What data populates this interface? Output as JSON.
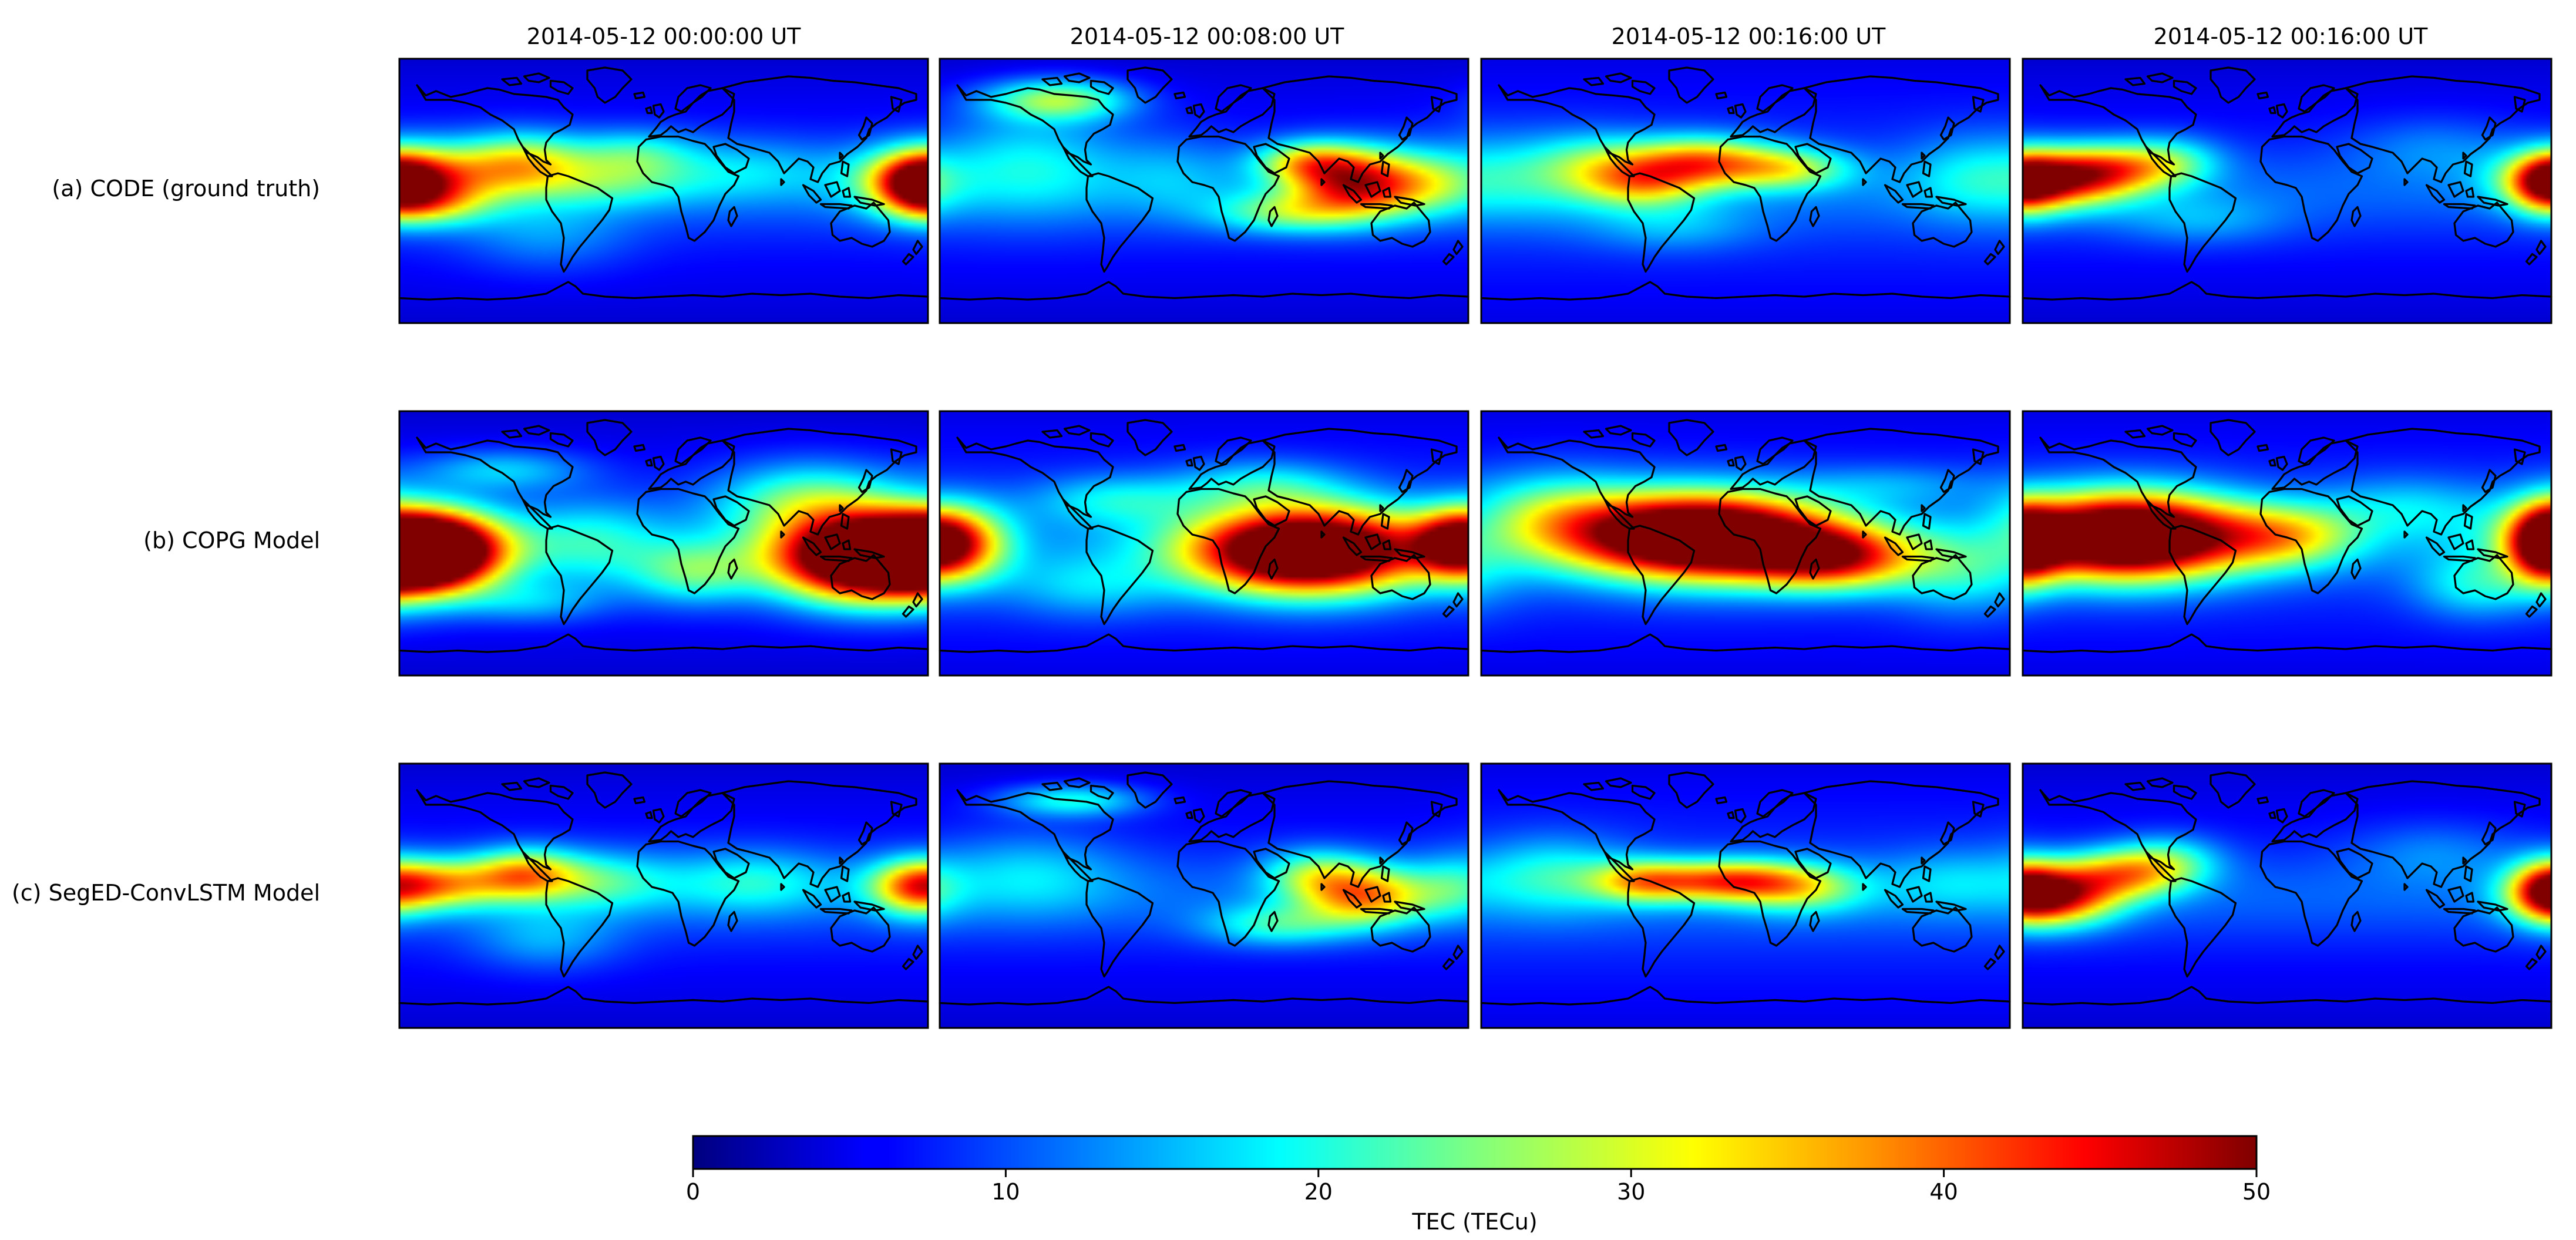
{
  "chart_data": {
    "type": "heatmap",
    "quantity": "TEC",
    "columns": [
      "2014-05-12 00:00:00 UT",
      "2014-05-12 00:08:00 UT",
      "2014-05-12 00:16:00 UT",
      "2014-05-12 00:16:00 UT"
    ],
    "rows": [
      "(a) CODE (ground truth)",
      "(b) COPG Model",
      "(c) SegED-ConvLSTM Model"
    ],
    "map_extent": {
      "lon": [
        -180,
        180
      ],
      "lat": [
        -90,
        90
      ]
    },
    "panels": [
      [
        {
          "background": 7,
          "blobs": [
            {
              "lon": -170,
              "lat": 8,
              "slon": 38,
              "slat": 16,
              "amp": 32
            },
            {
              "lon": -160,
              "lat": -10,
              "slon": 28,
              "slat": 10,
              "amp": 10
            },
            {
              "lon": 175,
              "lat": 5,
              "slon": 20,
              "slat": 14,
              "amp": 26
            },
            {
              "lon": -95,
              "lat": 20,
              "slon": 30,
              "slat": 14,
              "amp": 20
            },
            {
              "lon": -40,
              "lat": 5,
              "slon": 45,
              "slat": 12,
              "amp": 10
            },
            {
              "lon": -20,
              "lat": 25,
              "slon": 30,
              "slat": 12,
              "amp": 12
            },
            {
              "lon": -80,
              "lat": -30,
              "slon": 40,
              "slat": 18,
              "amp": 6
            },
            {
              "lon": 60,
              "lat": 15,
              "slon": 40,
              "slat": 15,
              "amp": 7
            }
          ]
        },
        {
          "background": 7,
          "blobs": [
            {
              "lon": 105,
              "lat": 5,
              "slon": 32,
              "slat": 16,
              "amp": 35
            },
            {
              "lon": 70,
              "lat": 20,
              "slon": 25,
              "slat": 10,
              "amp": 18
            },
            {
              "lon": 55,
              "lat": -15,
              "slon": 35,
              "slat": 10,
              "amp": 14
            },
            {
              "lon": -100,
              "lat": 62,
              "slon": 35,
              "slat": 10,
              "amp": 20
            },
            {
              "lon": -120,
              "lat": 20,
              "slon": 45,
              "slat": 25,
              "amp": 10
            },
            {
              "lon": 160,
              "lat": 5,
              "slon": 25,
              "slat": 15,
              "amp": 10
            },
            {
              "lon": -20,
              "lat": 10,
              "slon": 30,
              "slat": 20,
              "amp": 5
            }
          ]
        },
        {
          "background": 8,
          "blobs": [
            {
              "lon": -30,
              "lat": 20,
              "slon": 35,
              "slat": 12,
              "amp": 26
            },
            {
              "lon": -70,
              "lat": 5,
              "slon": 30,
              "slat": 12,
              "amp": 18
            },
            {
              "lon": 30,
              "lat": 15,
              "slon": 30,
              "slat": 10,
              "amp": 16
            },
            {
              "lon": -100,
              "lat": 20,
              "slon": 30,
              "slat": 14,
              "amp": 10
            },
            {
              "lon": -150,
              "lat": 10,
              "slon": 40,
              "slat": 20,
              "amp": 8
            },
            {
              "lon": 150,
              "lat": 10,
              "slon": 30,
              "slat": 20,
              "amp": 6
            },
            {
              "lon": -50,
              "lat": -25,
              "slon": 40,
              "slat": 12,
              "amp": 6
            }
          ]
        },
        {
          "background": 7,
          "blobs": [
            {
              "lon": -160,
              "lat": 8,
              "slon": 35,
              "slat": 14,
              "amp": 32
            },
            {
              "lon": -120,
              "lat": 15,
              "slon": 30,
              "slat": 12,
              "amp": 18
            },
            {
              "lon": 178,
              "lat": 5,
              "slon": 18,
              "slat": 14,
              "amp": 26
            },
            {
              "lon": -80,
              "lat": 20,
              "slon": 25,
              "slat": 12,
              "amp": 12
            },
            {
              "lon": -60,
              "lat": -20,
              "slon": 40,
              "slat": 12,
              "amp": 6
            },
            {
              "lon": 100,
              "lat": 30,
              "slon": 40,
              "slat": 15,
              "amp": 5
            }
          ]
        }
      ],
      [
        {
          "background": 7,
          "blobs": [
            {
              "lon": -160,
              "lat": -5,
              "slon": 35,
              "slat": 18,
              "amp": 60
            },
            {
              "lon": 140,
              "lat": -10,
              "slon": 45,
              "slat": 20,
              "amp": 62
            },
            {
              "lon": 100,
              "lat": 30,
              "slon": 45,
              "slat": 18,
              "amp": 16
            },
            {
              "lon": -110,
              "lat": 50,
              "slon": 40,
              "slat": 10,
              "amp": 10
            },
            {
              "lon": -50,
              "lat": 0,
              "slon": 35,
              "slat": 20,
              "amp": 10
            },
            {
              "lon": 20,
              "lat": -20,
              "slon": 30,
              "slat": 15,
              "amp": 14
            },
            {
              "lon": -90,
              "lat": -40,
              "slon": 35,
              "slat": 10,
              "amp": 8
            }
          ]
        },
        {
          "background": 8,
          "blobs": [
            {
              "lon": 70,
              "lat": -5,
              "slon": 55,
              "slat": 20,
              "amp": 60
            },
            {
              "lon": -170,
              "lat": 0,
              "slon": 25,
              "slat": 18,
              "amp": 28
            },
            {
              "lon": 170,
              "lat": 0,
              "slon": 20,
              "slat": 15,
              "amp": 22
            },
            {
              "lon": -60,
              "lat": 30,
              "slon": 40,
              "slat": 12,
              "amp": 10
            },
            {
              "lon": -80,
              "lat": -30,
              "slon": 40,
              "slat": 15,
              "amp": 8
            },
            {
              "lon": 40,
              "lat": 40,
              "slon": 40,
              "slat": 12,
              "amp": 10
            }
          ]
        },
        {
          "background": 8,
          "blobs": [
            {
              "lon": -30,
              "lat": 5,
              "slon": 60,
              "slat": 20,
              "amp": 60
            },
            {
              "lon": 60,
              "lat": -10,
              "slon": 40,
              "slat": 15,
              "amp": 30
            },
            {
              "lon": -130,
              "lat": 20,
              "slon": 40,
              "slat": 20,
              "amp": 14
            },
            {
              "lon": 150,
              "lat": -20,
              "slon": 35,
              "slat": 20,
              "amp": 10
            },
            {
              "lon": 100,
              "lat": 40,
              "slon": 45,
              "slat": 10,
              "amp": 6
            }
          ]
        },
        {
          "background": 8,
          "blobs": [
            {
              "lon": -110,
              "lat": 5,
              "slon": 55,
              "slat": 20,
              "amp": 60
            },
            {
              "lon": 178,
              "lat": 0,
              "slon": 18,
              "slat": 18,
              "amp": 40
            },
            {
              "lon": 0,
              "lat": 5,
              "slon": 35,
              "slat": 15,
              "amp": 18
            },
            {
              "lon": 80,
              "lat": 25,
              "slon": 40,
              "slat": 15,
              "amp": 8
            },
            {
              "lon": 130,
              "lat": -30,
              "slon": 30,
              "slat": 15,
              "amp": 10
            }
          ]
        }
      ],
      [
        {
          "background": 7,
          "blobs": [
            {
              "lon": -160,
              "lat": 8,
              "slon": 35,
              "slat": 12,
              "amp": 26
            },
            {
              "lon": -95,
              "lat": 15,
              "slon": 25,
              "slat": 12,
              "amp": 22
            },
            {
              "lon": -45,
              "lat": 10,
              "slon": 35,
              "slat": 14,
              "amp": 12
            },
            {
              "lon": 60,
              "lat": 10,
              "slon": 40,
              "slat": 15,
              "amp": 10
            },
            {
              "lon": 170,
              "lat": 5,
              "slon": 20,
              "slat": 14,
              "amp": 16
            },
            {
              "lon": -80,
              "lat": -30,
              "slon": 35,
              "slat": 15,
              "amp": 7
            }
          ]
        },
        {
          "background": 7,
          "blobs": [
            {
              "lon": 110,
              "lat": 0,
              "slon": 30,
              "slat": 14,
              "amp": 26
            },
            {
              "lon": 75,
              "lat": 15,
              "slon": 25,
              "slat": 12,
              "amp": 14
            },
            {
              "lon": 50,
              "lat": -20,
              "slon": 35,
              "slat": 10,
              "amp": 12
            },
            {
              "lon": -90,
              "lat": 65,
              "slon": 35,
              "slat": 8,
              "amp": 14
            },
            {
              "lon": -120,
              "lat": 15,
              "slon": 45,
              "slat": 20,
              "amp": 8
            },
            {
              "lon": 170,
              "lat": 5,
              "slon": 20,
              "slat": 15,
              "amp": 8
            }
          ]
        },
        {
          "background": 8,
          "blobs": [
            {
              "lon": -10,
              "lat": 10,
              "slon": 35,
              "slat": 10,
              "amp": 28
            },
            {
              "lon": -70,
              "lat": 10,
              "slon": 25,
              "slat": 10,
              "amp": 20
            },
            {
              "lon": 40,
              "lat": 5,
              "slon": 30,
              "slat": 12,
              "amp": 14
            },
            {
              "lon": -130,
              "lat": 15,
              "slon": 35,
              "slat": 18,
              "amp": 10
            },
            {
              "lon": 140,
              "lat": 10,
              "slon": 35,
              "slat": 15,
              "amp": 6
            }
          ]
        },
        {
          "background": 7,
          "blobs": [
            {
              "lon": -160,
              "lat": 0,
              "slon": 30,
              "slat": 14,
              "amp": 36
            },
            {
              "lon": -110,
              "lat": 15,
              "slon": 30,
              "slat": 12,
              "amp": 22
            },
            {
              "lon": 178,
              "lat": 5,
              "slon": 18,
              "slat": 14,
              "amp": 24
            },
            {
              "lon": -80,
              "lat": 25,
              "slon": 25,
              "slat": 12,
              "amp": 10
            },
            {
              "lon": 100,
              "lat": 30,
              "slon": 40,
              "slat": 15,
              "amp": 5
            }
          ]
        }
      ]
    ],
    "colorbar": {
      "colormap": "jet",
      "label": "TEC (TECu)",
      "range": [
        0,
        50
      ],
      "ticks": [
        0,
        10,
        20,
        30,
        40,
        50
      ]
    },
    "overlay": "coastlines"
  }
}
